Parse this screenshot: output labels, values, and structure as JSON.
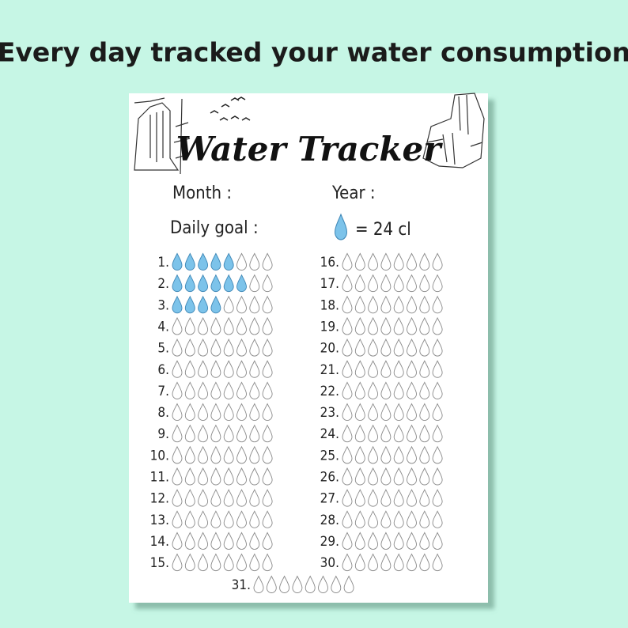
{
  "header": {
    "title": "Every day tracked your water consumption"
  },
  "sheet": {
    "title": "Water Tracker",
    "month_label": "Month :",
    "year_label": "Year :",
    "goal_label": "Daily goal :",
    "goal_unit": "= 24 cl",
    "drops_per_day": 8,
    "days": [
      {
        "label": "1.",
        "filled": 5
      },
      {
        "label": "2.",
        "filled": 6
      },
      {
        "label": "3.",
        "filled": 4
      },
      {
        "label": "4.",
        "filled": 0
      },
      {
        "label": "5.",
        "filled": 0
      },
      {
        "label": "6.",
        "filled": 0
      },
      {
        "label": "7.",
        "filled": 0
      },
      {
        "label": "8.",
        "filled": 0
      },
      {
        "label": "9.",
        "filled": 0
      },
      {
        "label": "10.",
        "filled": 0
      },
      {
        "label": "11.",
        "filled": 0
      },
      {
        "label": "12.",
        "filled": 0
      },
      {
        "label": "13.",
        "filled": 0
      },
      {
        "label": "14.",
        "filled": 0
      },
      {
        "label": "15.",
        "filled": 0
      },
      {
        "label": "16.",
        "filled": 0
      },
      {
        "label": "17.",
        "filled": 0
      },
      {
        "label": "18.",
        "filled": 0
      },
      {
        "label": "19.",
        "filled": 0
      },
      {
        "label": "20.",
        "filled": 0
      },
      {
        "label": "21.",
        "filled": 0
      },
      {
        "label": "22.",
        "filled": 0
      },
      {
        "label": "23.",
        "filled": 0
      },
      {
        "label": "24.",
        "filled": 0
      },
      {
        "label": "25.",
        "filled": 0
      },
      {
        "label": "26.",
        "filled": 0
      },
      {
        "label": "27.",
        "filled": 0
      },
      {
        "label": "28.",
        "filled": 0
      },
      {
        "label": "29.",
        "filled": 0
      },
      {
        "label": "30.",
        "filled": 0
      },
      {
        "label": "31.",
        "filled": 0
      }
    ]
  }
}
